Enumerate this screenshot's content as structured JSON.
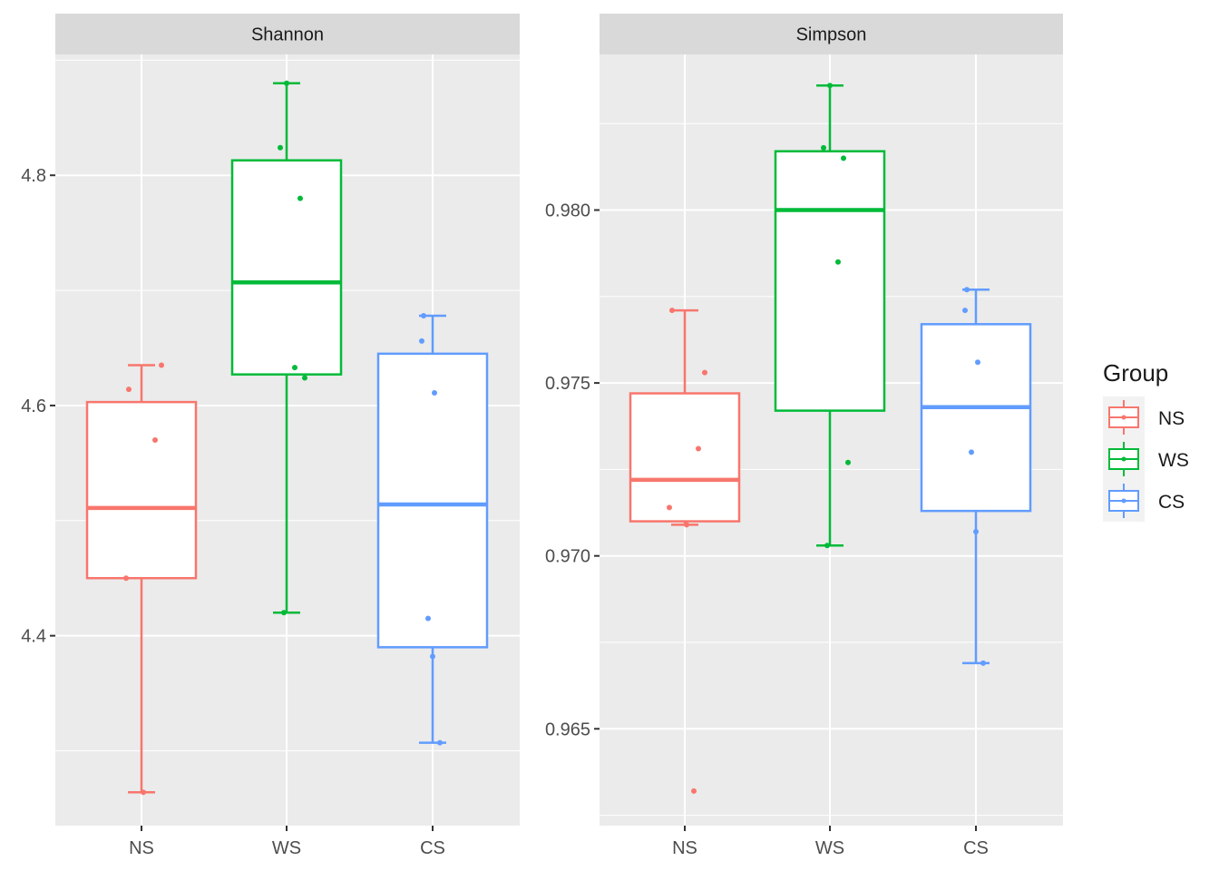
{
  "chart_data": {
    "type": "boxplot",
    "legend": {
      "title": "Group",
      "position": "right",
      "entries": [
        {
          "label": "NS",
          "color": "#F8766D"
        },
        {
          "label": "WS",
          "color": "#00BA38"
        },
        {
          "label": "CS",
          "color": "#619CFF"
        }
      ]
    },
    "panels": [
      {
        "title": "Shannon",
        "ylim": [
          4.235,
          4.905
        ],
        "yticks": [
          4.4,
          4.6,
          4.8
        ],
        "ytick_labels": [
          "4.4",
          "4.6",
          "4.8"
        ],
        "categories": [
          "NS",
          "WS",
          "CS"
        ],
        "boxes": [
          {
            "group": "NS",
            "lower_whisker": 4.264,
            "q1": 4.45,
            "median": 4.511,
            "q3": 4.603,
            "upper_whisker": 4.635,
            "points": [
              4.614,
              4.635,
              4.57,
              4.45,
              4.264
            ]
          },
          {
            "group": "WS",
            "lower_whisker": 4.42,
            "q1": 4.627,
            "median": 4.707,
            "q3": 4.813,
            "upper_whisker": 4.88,
            "points": [
              4.88,
              4.824,
              4.78,
              4.633,
              4.624,
              4.42
            ]
          },
          {
            "group": "CS",
            "lower_whisker": 4.307,
            "q1": 4.39,
            "median": 4.514,
            "q3": 4.645,
            "upper_whisker": 4.678,
            "points": [
              4.678,
              4.656,
              4.611,
              4.415,
              4.382,
              4.307
            ]
          }
        ]
      },
      {
        "title": "Simpson",
        "ylim": [
          0.9622,
          0.9845
        ],
        "yticks": [
          0.965,
          0.97,
          0.975,
          0.98
        ],
        "ytick_labels": [
          "0.965",
          "0.970",
          "0.975",
          "0.980"
        ],
        "categories": [
          "NS",
          "WS",
          "CS"
        ],
        "boxes": [
          {
            "group": "NS",
            "lower_whisker": 0.9709,
            "q1": 0.971,
            "median": 0.9722,
            "q3": 0.9747,
            "upper_whisker": 0.9771,
            "points": [
              0.9771,
              0.9753,
              0.9731,
              0.9714,
              0.9709,
              0.9632
            ]
          },
          {
            "group": "WS",
            "lower_whisker": 0.9703,
            "q1": 0.9742,
            "median": 0.98,
            "q3": 0.9817,
            "upper_whisker": 0.9836,
            "points": [
              0.9836,
              0.9818,
              0.9815,
              0.9785,
              0.9727,
              0.9703
            ]
          },
          {
            "group": "CS",
            "lower_whisker": 0.9669,
            "q1": 0.9713,
            "median": 0.9743,
            "q3": 0.9767,
            "upper_whisker": 0.9777,
            "points": [
              0.9777,
              0.9771,
              0.9756,
              0.973,
              0.9707,
              0.9669
            ]
          }
        ]
      }
    ]
  }
}
